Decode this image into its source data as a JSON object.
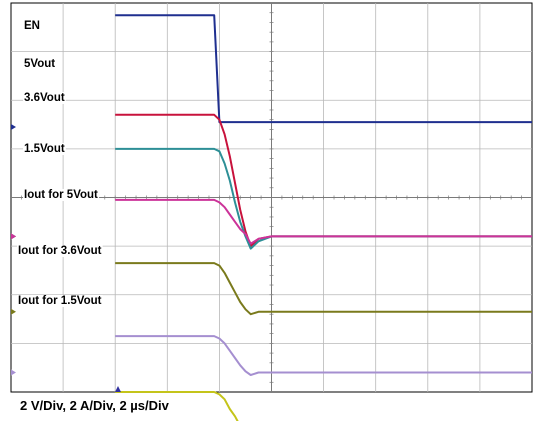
{
  "chart_data": {
    "type": "line",
    "title": "",
    "xlabel": "",
    "ylabel": "",
    "x_unit": "µs",
    "x": [
      -4.0,
      -2.0,
      -0.2,
      0.0,
      0.2,
      0.4,
      0.6,
      0.8,
      1.0,
      1.2,
      1.5,
      2.0,
      4.0,
      8.0,
      16.0
    ],
    "xlim": [
      -8.0,
      12.0
    ],
    "grid": true,
    "divisions": {
      "x": 10,
      "y": 8
    },
    "series": [
      {
        "name": "EN",
        "color": "#1f2f8f",
        "values": [
          4.6,
          4.6,
          4.6,
          0.2,
          0.2,
          0.2,
          0.2,
          0.2,
          0.2,
          0.2,
          0.2,
          0.2,
          0.2,
          0.2,
          0.2
        ]
      },
      {
        "name": "5Vout",
        "color": "#c8123c",
        "values": [
          5.0,
          5.0,
          5.0,
          4.8,
          4.2,
          3.3,
          2.2,
          1.1,
          0.2,
          -0.4,
          -0.1,
          0.0,
          0.0,
          0.0,
          0.0
        ]
      },
      {
        "name": "3.6Vout",
        "color": "#2d8f96",
        "values": [
          3.6,
          3.6,
          3.6,
          3.5,
          3.0,
          2.3,
          1.4,
          0.6,
          0.0,
          -0.5,
          -0.2,
          0.0,
          0.0,
          0.0,
          0.0
        ]
      },
      {
        "name": "1.5Vout",
        "color": "#cc3399",
        "values": [
          1.5,
          1.5,
          1.5,
          1.4,
          1.2,
          0.9,
          0.6,
          0.3,
          0.1,
          -0.3,
          -0.1,
          0.0,
          0.0,
          0.0,
          0.0
        ]
      },
      {
        "name": "Iout for 5Vout",
        "color": "#7a7a1c",
        "values": [
          2.0,
          2.0,
          2.0,
          1.9,
          1.6,
          1.2,
          0.8,
          0.4,
          0.1,
          -0.1,
          0.0,
          0.0,
          0.0,
          0.0,
          0.0
        ]
      },
      {
        "name": "Iout for 3.6Vout",
        "color": "#a58fd0",
        "values": [
          1.5,
          1.5,
          1.5,
          1.4,
          1.2,
          0.9,
          0.6,
          0.3,
          0.05,
          -0.1,
          0.0,
          0.0,
          0.0,
          0.0,
          0.0
        ]
      },
      {
        "name": "Iout for 1.5Vout",
        "color": "#c4c41a",
        "values": [
          1.7,
          1.7,
          1.7,
          1.6,
          1.4,
          1.0,
          0.7,
          0.3,
          0.05,
          -0.2,
          0.0,
          0.0,
          0.0,
          0.0,
          0.0
        ]
      }
    ],
    "annotations": [
      "2 V/Div, 2 A/Div, 2 µs/Div"
    ]
  }
}
